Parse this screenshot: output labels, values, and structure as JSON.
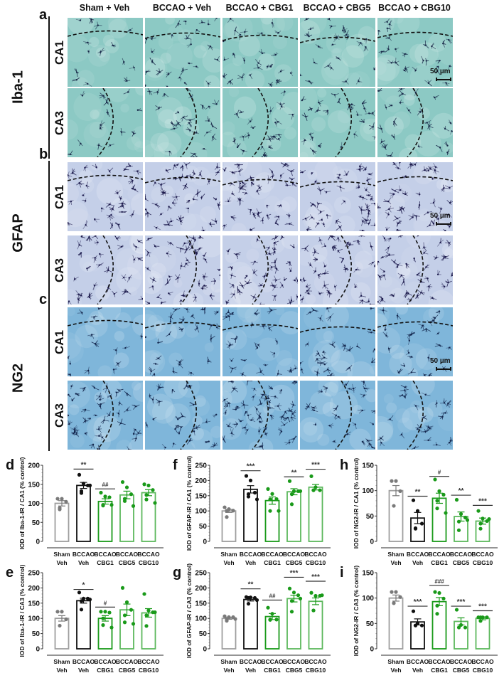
{
  "figure": {
    "columns": [
      "Sham + Veh",
      "BCCAO + Veh",
      "BCCAO + CBG1",
      "BCCAO + CBG5",
      "BCCAO + CBG10"
    ],
    "rows": [
      {
        "panel": "a",
        "marker": "Iba-1",
        "regions": [
          "CA1",
          "CA3"
        ],
        "bg": "#8cc9c4",
        "cell": "#1a2a4a",
        "scale_bar": "50 µm"
      },
      {
        "panel": "b",
        "marker": "GFAP",
        "regions": [
          "CA1",
          "CA3"
        ],
        "bg": "#c4cfe8",
        "cell": "#1e1c4e",
        "scale_bar": "50 µm"
      },
      {
        "panel": "c",
        "marker": "NG2",
        "regions": [
          "CA1",
          "CA3"
        ],
        "bg": "#7fb6da",
        "cell": "#15284f",
        "scale_bar": "50 µm"
      }
    ],
    "colors": {
      "sham": "#9e9e9e",
      "bccao": "#111111",
      "cbg": "#1a9a1a",
      "cbg_light": "#5cb85c"
    }
  },
  "chart_data": [
    {
      "panel": "d",
      "type": "bar",
      "ylabel": "IOD of Iba-1-IR / CA1 (% control)",
      "ylim": [
        0,
        200
      ],
      "yticks": [
        0,
        50,
        100,
        150,
        200
      ],
      "categories": [
        "Sham Veh",
        "BCCAO Veh",
        "BCCAO CBG1",
        "BCCAO CBG5",
        "BCCAO CBG10"
      ],
      "values": [
        100,
        147,
        105,
        122,
        128
      ],
      "sem": [
        7,
        8,
        7,
        10,
        8
      ],
      "points": [
        [
          112,
          112,
          104,
          88,
          84
        ],
        [
          175,
          152,
          147,
          132,
          127,
          147
        ],
        [
          128,
          118,
          116,
          96,
          94,
          96
        ],
        [
          156,
          142,
          124,
          112,
          106,
          93
        ],
        [
          150,
          147,
          135,
          122,
          110,
          101
        ]
      ],
      "annotations": [
        "",
        "**",
        "##",
        "",
        ""
      ],
      "annotation_y": [
        0,
        190,
        138,
        0,
        0
      ]
    },
    {
      "panel": "e",
      "type": "bar",
      "ylabel": "IOD of Iba-1-IR / CA3 (% control)",
      "ylim": [
        0,
        250
      ],
      "yticks": [
        0,
        50,
        100,
        150,
        200,
        250
      ],
      "categories": [
        "Sham Veh",
        "BCCAO Veh",
        "BCCAO CBG1",
        "BCCAO CBG5",
        "BCCAO CBG10"
      ],
      "values": [
        100,
        158,
        100,
        128,
        118
      ],
      "sem": [
        9,
        8,
        9,
        19,
        14
      ],
      "points": [
        [
          122,
          122,
          97,
          76
        ],
        [
          185,
          165,
          165,
          157,
          129,
          162
        ],
        [
          122,
          122,
          119,
          100,
          78,
          70
        ],
        [
          200,
          153,
          128,
          110,
          87,
          82
        ],
        [
          180,
          126,
          120,
          110,
          75,
          120
        ]
      ],
      "annotations": [
        "",
        "*",
        "#",
        "",
        ""
      ],
      "annotation_y": [
        0,
        195,
        137,
        0,
        0
      ]
    },
    {
      "panel": "f",
      "type": "bar",
      "ylabel": "IOD of GFAP-IR / CA1 (% control)",
      "ylim": [
        0,
        250
      ],
      "yticks": [
        0,
        50,
        100,
        150,
        200,
        250
      ],
      "categories": [
        "Sham Veh",
        "BCCAO Veh",
        "BCCAO CBG1",
        "BCCAO CBG5",
        "BCCAO CBG10"
      ],
      "values": [
        100,
        171,
        134,
        163,
        178
      ],
      "sem": [
        5,
        12,
        12,
        10,
        9
      ],
      "points": [
        [
          112,
          106,
          101,
          100,
          80
        ],
        [
          215,
          200,
          160,
          155,
          147,
          138
        ],
        [
          172,
          156,
          139,
          138,
          100,
          100
        ],
        [
          198,
          165,
          165,
          155,
          122,
          165
        ],
        [
          214,
          178,
          168,
          168,
          168
        ]
      ],
      "annotations": [
        "",
        "***",
        "",
        "**",
        "***"
      ],
      "annotation_y": [
        0,
        232,
        0,
        212,
        237
      ]
    },
    {
      "panel": "g",
      "type": "bar",
      "ylabel": "IOD of GFAP-IR / CA3 (% control)",
      "ylim": [
        0,
        250
      ],
      "yticks": [
        0,
        50,
        100,
        150,
        200,
        250
      ],
      "categories": [
        "Sham Veh",
        "BCCAO Veh",
        "BCCAO CBG1",
        "BCCAO CBG5",
        "BCCAO CBG10"
      ],
      "values": [
        100,
        162,
        106,
        165,
        156
      ],
      "sem": [
        3,
        5,
        10,
        11,
        11
      ],
      "points": [
        [
          107,
          104,
          104,
          97,
          92,
          98
        ],
        [
          170,
          169,
          167,
          167,
          148,
          160
        ],
        [
          135,
          115,
          96,
          96,
          95
        ],
        [
          198,
          185,
          176,
          157,
          122,
          165
        ],
        [
          184,
          174,
          174,
          126,
          126,
          176
        ]
      ],
      "annotations": [
        "",
        "**",
        "##",
        "***",
        "***"
      ],
      "annotation_y": [
        0,
        197,
        160,
        235,
        222
      ]
    },
    {
      "panel": "h",
      "type": "bar",
      "ylabel": "IOD of NG2-IR / CA1 (% control)",
      "ylim": [
        0,
        150
      ],
      "yticks": [
        0,
        50,
        100,
        150
      ],
      "categories": [
        "Sham Veh",
        "BCCAO Veh",
        "BCCAO CBG1",
        "BCCAO CBG5",
        "BCCAO CBG10"
      ],
      "values": [
        100,
        46,
        85,
        49,
        40
      ],
      "sem": [
        10,
        11,
        10,
        9,
        6
      ],
      "points": [
        [
          119,
          119,
          99,
          70
        ],
        [
          81,
          60,
          35,
          25,
          26
        ],
        [
          122,
          99,
          92,
          80,
          65,
          56
        ],
        [
          82,
          54,
          47,
          39,
          22,
          42
        ],
        [
          60,
          45,
          40,
          35,
          25,
          44
        ]
      ],
      "annotations": [
        "",
        "**",
        "#",
        "**",
        "***"
      ],
      "annotation_y": [
        0,
        89,
        128,
        91,
        71
      ]
    },
    {
      "panel": "i",
      "type": "bar",
      "ylabel": "IOD of NG2-IR / CA3 (% control)",
      "ylim": [
        0,
        150
      ],
      "yticks": [
        0,
        50,
        100,
        150
      ],
      "categories": [
        "Sham Veh",
        "BCCAO Veh",
        "BCCAO CBG1",
        "BCCAO CBG5",
        "BCCAO CBG10"
      ],
      "values": [
        100,
        53,
        93,
        54,
        60
      ],
      "sem": [
        6,
        6,
        8,
        7,
        3
      ],
      "points": [
        [
          112,
          112,
          102,
          90,
          90
        ],
        [
          74,
          50,
          46,
          46,
          46
        ],
        [
          112,
          110,
          99,
          85,
          69
        ],
        [
          77,
          47,
          42,
          42
        ],
        [
          62,
          62,
          62,
          62,
          55
        ]
      ],
      "annotations": [
        "",
        "***",
        "###",
        "***",
        "***"
      ],
      "annotation_y": [
        0,
        84,
        125,
        84,
        75
      ]
    }
  ]
}
